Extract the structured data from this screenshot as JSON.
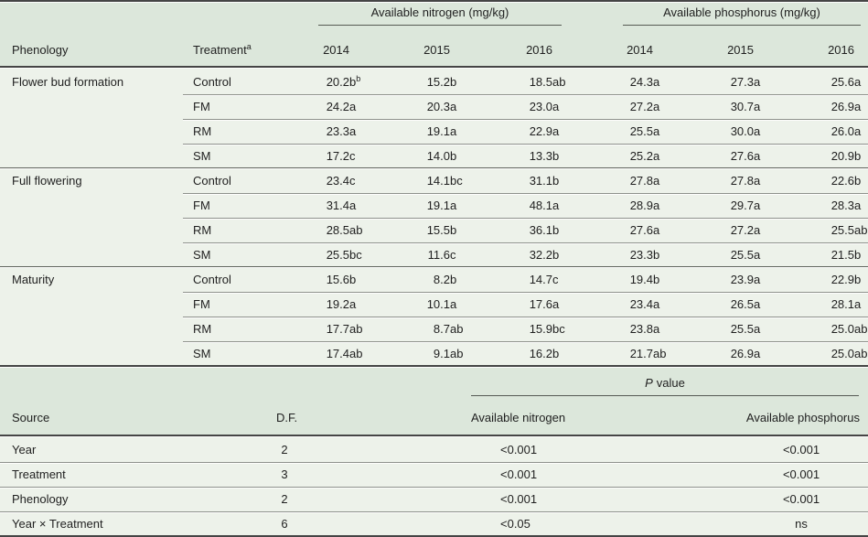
{
  "style": {
    "header_band_color": "#dce7db",
    "row_band_color": "#edf2ea",
    "dark_rule_color": "#454545",
    "thin_rule_color": "#8e928c",
    "text_color": "#1f1f1f"
  },
  "table1": {
    "groups": [
      {
        "label": "Available nitrogen (mg/kg)"
      },
      {
        "label": "Available phosphorus (mg/kg)"
      }
    ],
    "col_headers": {
      "phenology": "Phenology",
      "treatment": "Treatment",
      "treatment_sup": "a",
      "years": [
        "2014",
        "2015",
        "2016",
        "2014",
        "2015",
        "2016"
      ]
    },
    "rows": [
      {
        "phenology": "Flower bud formation",
        "treatment": "Control",
        "sup": "b",
        "values": [
          "20.2b",
          "15.2b",
          "18.5ab",
          "24.3a",
          "27.3a",
          "25.6a"
        ]
      },
      {
        "phenology": "",
        "treatment": "FM",
        "values": [
          "24.2a",
          "20.3a",
          "23.0a",
          "27.2a",
          "30.7a",
          "26.9a"
        ]
      },
      {
        "phenology": "",
        "treatment": "RM",
        "values": [
          "23.3a",
          "19.1a",
          "22.9a",
          "25.5a",
          "30.0a",
          "26.0a"
        ]
      },
      {
        "phenology": "",
        "treatment": "SM",
        "values": [
          "17.2c",
          "14.0b",
          "13.3b",
          "25.2a",
          "27.6a",
          "20.9b"
        ]
      },
      {
        "phenology": "Full flowering",
        "treatment": "Control",
        "values": [
          "23.4c",
          "14.1bc",
          "31.1b",
          "27.8a",
          "27.8a",
          "22.6b"
        ]
      },
      {
        "phenology": "",
        "treatment": "FM",
        "values": [
          "31.4a",
          "19.1a",
          "48.1a",
          "28.9a",
          "29.7a",
          "28.3a"
        ]
      },
      {
        "phenology": "",
        "treatment": "RM",
        "values": [
          "28.5ab",
          "15.5b",
          "36.1b",
          "27.6a",
          "27.2a",
          "25.5ab"
        ]
      },
      {
        "phenology": "",
        "treatment": "SM",
        "values": [
          "25.5bc",
          "11.6c",
          "32.2b",
          "23.3b",
          "25.5a",
          "21.5b"
        ]
      },
      {
        "phenology": "Maturity",
        "treatment": "Control",
        "values": [
          "15.6b",
          "8.2b",
          "14.7c",
          "19.4b",
          "23.9a",
          "22.9b"
        ]
      },
      {
        "phenology": "",
        "treatment": "FM",
        "values": [
          "19.2a",
          "10.1a",
          "17.6a",
          "23.4a",
          "26.5a",
          "28.1a"
        ]
      },
      {
        "phenology": "",
        "treatment": "RM",
        "values": [
          "17.7ab",
          "8.7ab",
          "15.9bc",
          "23.8a",
          "25.5a",
          "25.0ab"
        ]
      },
      {
        "phenology": "",
        "treatment": "SM",
        "values": [
          "17.4ab",
          "9.1ab",
          "16.2b",
          "21.7ab",
          "26.9a",
          "25.0ab"
        ]
      }
    ]
  },
  "table2": {
    "pvalue_label_italic": "P",
    "pvalue_label_rest": "value",
    "col_headers": {
      "source": "Source",
      "df": "D.F.",
      "nitrogen": "Available nitrogen",
      "phosphorus": "Available phosphorus"
    },
    "rows": [
      {
        "source": "Year",
        "df": "2",
        "nitrogen": "<0.001",
        "phosphorus": "<0.001"
      },
      {
        "source": "Treatment",
        "df": "3",
        "nitrogen": "<0.001",
        "phosphorus": "<0.001"
      },
      {
        "source": "Phenology",
        "df": "2",
        "nitrogen": "<0.001",
        "phosphorus": "<0.001"
      },
      {
        "source": "Year × Treatment",
        "df": "6",
        "nitrogen": "<0.05",
        "phosphorus": "ns"
      }
    ]
  }
}
